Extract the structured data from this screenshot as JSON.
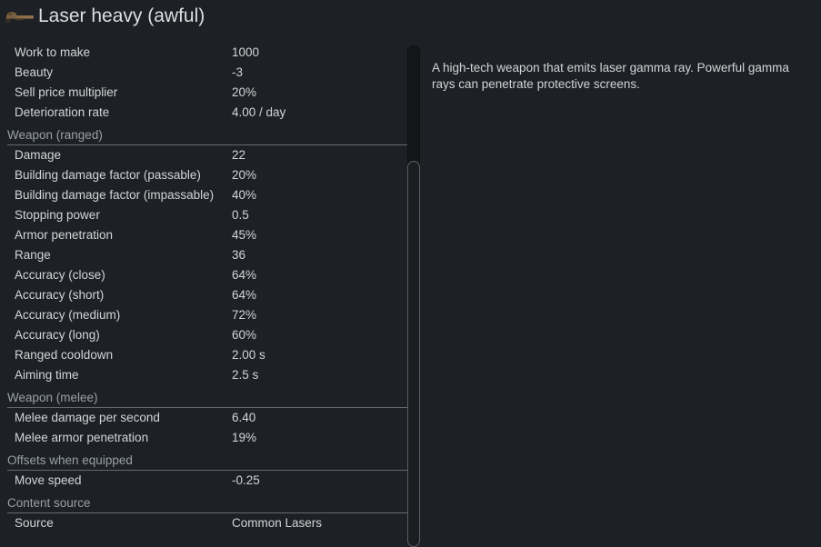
{
  "window": {
    "title": "Laser heavy (awful)"
  },
  "icon": {
    "name": "laser-heavy-weapon-icon"
  },
  "colors": {
    "background": "#1d2125",
    "text": "#d2d5d7",
    "section_text": "#9aa0a3",
    "divider": "#66696c",
    "scrollbar_border": "#5c5f61",
    "icon_tan": "#8a6f48",
    "icon_brown": "#6b5233",
    "icon_dark": "#3a2f22"
  },
  "stats": {
    "groups": [
      {
        "header": "",
        "rows": [
          {
            "label": "Work to make",
            "value": "1000"
          },
          {
            "label": "Beauty",
            "value": "-3"
          },
          {
            "label": "Sell price multiplier",
            "value": "20%"
          },
          {
            "label": "Deterioration rate",
            "value": "4.00 / day"
          }
        ]
      },
      {
        "header": "Weapon (ranged)",
        "rows": [
          {
            "label": "Damage",
            "value": "22"
          },
          {
            "label": "Building damage factor (passable)",
            "value": "20%"
          },
          {
            "label": "Building damage factor (impassable)",
            "value": "40%"
          },
          {
            "label": "Stopping power",
            "value": "0.5"
          },
          {
            "label": "Armor penetration",
            "value": "45%"
          },
          {
            "label": "Range",
            "value": "36"
          },
          {
            "label": "Accuracy (close)",
            "value": "64%"
          },
          {
            "label": "Accuracy (short)",
            "value": "64%"
          },
          {
            "label": "Accuracy (medium)",
            "value": "72%"
          },
          {
            "label": "Accuracy (long)",
            "value": "60%"
          },
          {
            "label": "Ranged cooldown",
            "value": "2.00 s"
          },
          {
            "label": "Aiming time",
            "value": "2.5 s"
          }
        ]
      },
      {
        "header": "Weapon (melee)",
        "rows": [
          {
            "label": "Melee damage per second",
            "value": "6.40"
          },
          {
            "label": "Melee armor penetration",
            "value": "19%"
          }
        ]
      },
      {
        "header": "Offsets when equipped",
        "rows": [
          {
            "label": "Move speed",
            "value": "-0.25"
          }
        ]
      },
      {
        "header": "Content source",
        "rows": [
          {
            "label": "Source",
            "value": "Common Lasers"
          }
        ]
      }
    ]
  },
  "description": "A high-tech weapon that emits laser gamma ray. Powerful gamma rays can penetrate protective screens."
}
